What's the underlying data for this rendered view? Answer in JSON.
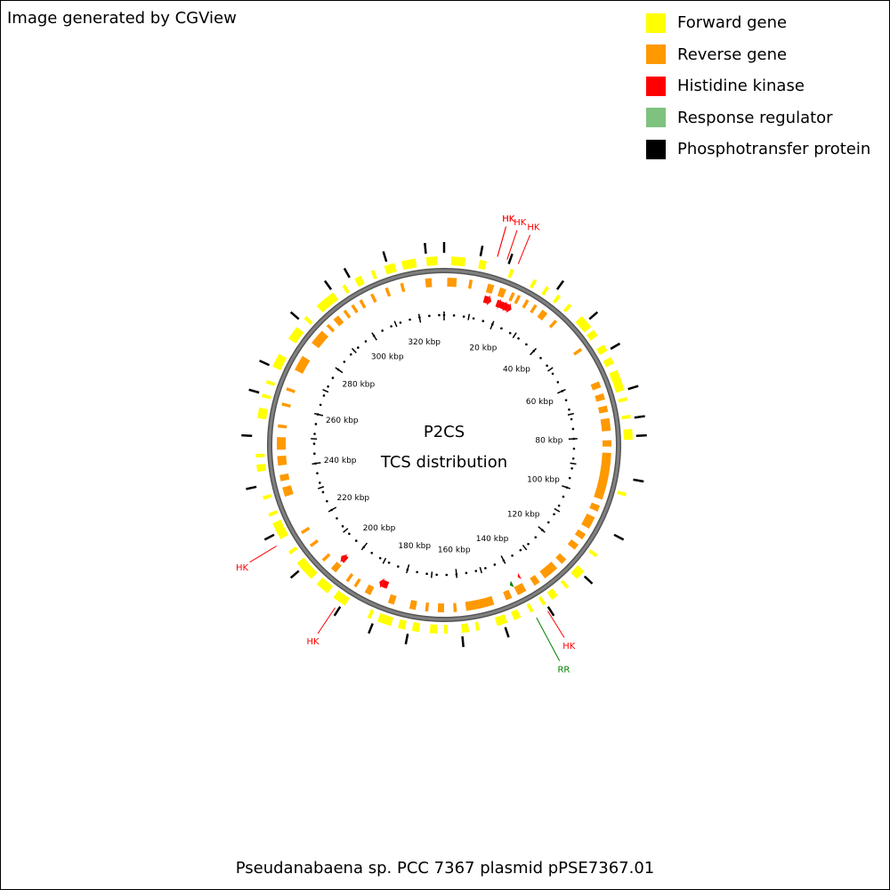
{
  "credit": "Image generated by CGView",
  "legend": [
    {
      "label": "Forward gene",
      "color": "#ffff00"
    },
    {
      "label": "Reverse gene",
      "color": "#ff9900"
    },
    {
      "label": "Histidine kinase",
      "color": "#ff0000"
    },
    {
      "label": "Response regulator",
      "color": "#7fc27f"
    },
    {
      "label": "Phosphotransfer protein",
      "color": "#000000"
    }
  ],
  "center": {
    "line1": "P2CS",
    "line2": "TCS distribution"
  },
  "plasmid_name": "Pseudanabaena sp. PCC 7367 plasmid pPSE7367.01",
  "map": {
    "length_kbp": 330,
    "backbone_color": "#808080",
    "tick_labels": [
      "20 kbp",
      "40 kbp",
      "60 kbp",
      "80 kbp",
      "100 kbp",
      "120 kbp",
      "140 kbp",
      "160 kbp",
      "180 kbp",
      "200 kbp",
      "220 kbp",
      "240 kbp",
      "260 kbp",
      "280 kbp",
      "300 kbp",
      "320 kbp"
    ],
    "tick_values_kbp": [
      20,
      40,
      60,
      80,
      100,
      120,
      140,
      160,
      180,
      200,
      220,
      240,
      260,
      280,
      300,
      320
    ],
    "forward_genes_kbp": [
      [
        2,
        6
      ],
      [
        10,
        12
      ],
      [
        19,
        20
      ],
      [
        26,
        27
      ],
      [
        30,
        31
      ],
      [
        34,
        35
      ],
      [
        38,
        39
      ],
      [
        43,
        47
      ],
      [
        48,
        50
      ],
      [
        53,
        55
      ],
      [
        57,
        59
      ],
      [
        61,
        67
      ],
      [
        69,
        70
      ],
      [
        74,
        75
      ],
      [
        78,
        81
      ],
      [
        96,
        97
      ],
      [
        115,
        116
      ],
      [
        121,
        124
      ],
      [
        127,
        128
      ],
      [
        131,
        133
      ],
      [
        135,
        136
      ],
      [
        139,
        140
      ],
      [
        143,
        145
      ],
      [
        147,
        150
      ],
      [
        155,
        156
      ],
      [
        158,
        160
      ],
      [
        164,
        165
      ],
      [
        167,
        169
      ],
      [
        172,
        174
      ],
      [
        176,
        178
      ],
      [
        180,
        184
      ],
      [
        186,
        187
      ],
      [
        194,
        198
      ],
      [
        200,
        204
      ],
      [
        206,
        212
      ],
      [
        215,
        216
      ],
      [
        220,
        225
      ],
      [
        227,
        228
      ],
      [
        232,
        233
      ],
      [
        240,
        242
      ],
      [
        244,
        245
      ],
      [
        255,
        258
      ],
      [
        261,
        262
      ],
      [
        265,
        266
      ],
      [
        270,
        274
      ],
      [
        279,
        283
      ],
      [
        286,
        287
      ],
      [
        291,
        297
      ],
      [
        300,
        301
      ],
      [
        304,
        306
      ],
      [
        309,
        310
      ],
      [
        313,
        316
      ],
      [
        318,
        322
      ],
      [
        325,
        328
      ]
    ],
    "reverse_genes_kbp": [
      [
        1,
        4
      ],
      [
        8,
        9
      ],
      [
        14,
        16
      ],
      [
        18,
        20
      ],
      [
        22,
        23
      ],
      [
        24,
        25
      ],
      [
        27,
        28
      ],
      [
        30,
        31
      ],
      [
        33,
        35
      ],
      [
        38,
        39
      ],
      [
        50,
        51
      ],
      [
        62,
        64
      ],
      [
        66,
        68
      ],
      [
        70,
        72
      ],
      [
        74,
        78
      ],
      [
        81,
        83
      ],
      [
        85,
        100
      ],
      [
        102,
        104
      ],
      [
        106,
        110
      ],
      [
        112,
        114
      ],
      [
        116,
        118
      ],
      [
        122,
        124
      ],
      [
        126,
        131
      ],
      [
        133,
        135
      ],
      [
        138,
        141
      ],
      [
        143,
        145
      ],
      [
        149,
        158
      ],
      [
        161,
        162
      ],
      [
        165,
        167
      ],
      [
        170,
        171
      ],
      [
        174,
        176
      ],
      [
        181,
        183
      ],
      [
        189,
        191
      ],
      [
        194,
        195
      ],
      [
        197,
        198
      ],
      [
        202,
        204
      ],
      [
        207,
        208
      ],
      [
        213,
        214
      ],
      [
        218,
        219
      ],
      [
        231,
        234
      ],
      [
        236,
        238
      ],
      [
        241,
        244
      ],
      [
        246,
        250
      ],
      [
        253,
        254
      ],
      [
        260,
        261
      ],
      [
        265,
        266
      ],
      [
        272,
        277
      ],
      [
        282,
        287
      ],
      [
        289,
        290
      ],
      [
        292,
        294
      ],
      [
        296,
        297
      ],
      [
        299,
        300
      ],
      [
        302,
        303
      ],
      [
        306,
        307
      ],
      [
        311,
        312
      ],
      [
        316,
        317
      ],
      [
        324,
        326
      ]
    ],
    "phosphotransfer_ticks_kbp": [
      0,
      10,
      18,
      33,
      45,
      55,
      67,
      75,
      80,
      92,
      108,
      122,
      135,
      148,
      160,
      175,
      185,
      195,
      210,
      222,
      236,
      250,
      262,
      270,
      285,
      297,
      303,
      314,
      325
    ],
    "hk_features_kbp": [
      [
        344,
        345.5
      ],
      [
        18.6,
        19.4
      ],
      [
        20,
        21.5
      ],
      [
        21.5,
        23
      ],
      [
        202,
        203
      ],
      [
        185,
        187
      ]
    ],
    "hk_small_features_kbp": [
      [
        137.5,
        138.3
      ]
    ],
    "rr_features_kbp": [
      [
        141,
        142
      ]
    ],
    "callouts": [
      {
        "label": "HK",
        "kind": "HK",
        "pos_kbp": 344.5
      },
      {
        "label": "HK",
        "kind": "HK",
        "pos_kbp": 14.5
      },
      {
        "label": "HK",
        "kind": "HK",
        "pos_kbp": 17.2
      },
      {
        "label": "HK",
        "kind": "HK",
        "pos_kbp": 20.4
      },
      {
        "label": "HK",
        "kind": "HK",
        "pos_kbp": 219
      },
      {
        "label": "HK",
        "kind": "HK",
        "pos_kbp": 196
      },
      {
        "label": "HK",
        "kind": "HK",
        "pos_kbp": 135.7
      },
      {
        "label": "RR",
        "kind": "RR",
        "pos_kbp": 139.2
      }
    ]
  }
}
